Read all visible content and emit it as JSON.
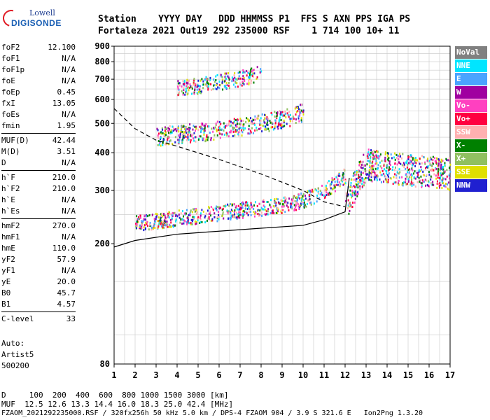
{
  "logo": {
    "top": "Lowell",
    "bottom": "DIGISONDE"
  },
  "header": {
    "labels": "Station    YYYY DAY   DDD HHMMSS P1  FFS S AXN PPS IGA PS",
    "values": "Fortaleza 2021 Out19 292 235000 RSF    1 714 100 10+ 11"
  },
  "params": {
    "group1": [
      [
        "foF2",
        "12.100"
      ],
      [
        "foF1",
        "N/A"
      ],
      [
        "foF1p",
        "N/A"
      ],
      [
        "foE",
        "N/A"
      ],
      [
        "foEp",
        "0.45"
      ],
      [
        "fxI",
        "13.05"
      ],
      [
        "foEs",
        "N/A"
      ],
      [
        "fmin",
        "1.95"
      ]
    ],
    "group2": [
      [
        "MUF(D)",
        "42.44"
      ],
      [
        "M(D)",
        "3.51"
      ],
      [
        "D",
        "N/A"
      ]
    ],
    "group3": [
      [
        "h`F",
        "210.0"
      ],
      [
        "h`F2",
        "210.0"
      ],
      [
        "h`E",
        "N/A"
      ],
      [
        "h`Es",
        "N/A"
      ]
    ],
    "group4": [
      [
        "hmF2",
        "270.0"
      ],
      [
        "hmF1",
        "N/A"
      ],
      [
        "hmE",
        "110.0"
      ],
      [
        "yF2",
        "57.9"
      ],
      [
        "yF1",
        "N/A"
      ],
      [
        "yE",
        "20.0"
      ],
      [
        "B0",
        "45.7"
      ],
      [
        "B1",
        "4.57"
      ]
    ],
    "group5": [
      [
        "C-level",
        "33"
      ]
    ]
  },
  "auto": {
    "line1": "Auto:",
    "line2": "Artist5",
    "line3": "500200"
  },
  "legend": [
    {
      "label": "NoVal",
      "color": "#808080"
    },
    {
      "label": "NNE",
      "color": "#00e5ff"
    },
    {
      "label": "E",
      "color": "#4aa3ff"
    },
    {
      "label": "W",
      "color": "#a000a0"
    },
    {
      "label": "Vo-",
      "color": "#ff40c0"
    },
    {
      "label": "Vo+",
      "color": "#ff0040"
    },
    {
      "label": "SSW",
      "color": "#ffb0b0"
    },
    {
      "label": "X-",
      "color": "#008000"
    },
    {
      "label": "X+",
      "color": "#90c060"
    },
    {
      "label": "SSE",
      "color": "#e0e000"
    },
    {
      "label": "NNW",
      "color": "#2020d0"
    }
  ],
  "footer": {
    "line1": "D     100  200  400  600  800 1000 1500 3000 [km]",
    "line2": "MUF  12.5 12.6 13.3 14.4 16.0 18.3 25.0 42.4 [MHz]",
    "line3": "FZAOM_2021292235000.RSF / 320fx256h 50 kHz 5.0 km / DPS-4 FZAOM 904 / 3.9 S 321.6 E   Ion2Png 1.3.20"
  },
  "chart_data": {
    "type": "scatter",
    "x_ticks": [
      "1",
      "2",
      "3",
      "4",
      "5",
      "6",
      "7",
      "8",
      "9",
      "10",
      "11",
      "12",
      "13",
      "14",
      "15",
      "16",
      "17"
    ],
    "y_ticks": [
      "200",
      "300",
      "400",
      "500",
      "600",
      "700",
      "800",
      "900"
    ],
    "y_bottom_label": "80",
    "xlim": [
      1,
      17
    ],
    "ylim": [
      80,
      900
    ],
    "y_scale": "log",
    "grid": true,
    "traces": [
      {
        "name": "O F2 trace",
        "x": [
          2,
          3,
          4,
          5,
          6,
          7,
          8,
          9,
          10,
          11,
          12
        ],
        "y": [
          235,
          240,
          245,
          250,
          255,
          260,
          265,
          270,
          280,
          300,
          340
        ]
      },
      {
        "name": "2nd hop",
        "x": [
          3,
          4,
          5,
          6,
          7,
          8,
          9,
          10
        ],
        "y": [
          455,
          465,
          470,
          480,
          490,
          505,
          520,
          550
        ]
      },
      {
        "name": "3rd hop",
        "x": [
          4,
          5,
          6,
          7,
          8
        ],
        "y": [
          660,
          670,
          690,
          710,
          740
        ]
      },
      {
        "name": "X trace",
        "x": [
          12,
          13,
          14,
          15,
          16,
          17
        ],
        "y": [
          270,
          370,
          360,
          355,
          350,
          345
        ]
      }
    ],
    "model_profile": {
      "x": [
        1,
        2,
        4,
        6,
        8,
        10,
        11,
        12,
        12.2
      ],
      "y": [
        195,
        205,
        215,
        220,
        225,
        230,
        240,
        255,
        330
      ]
    },
    "muf_curve": {
      "x": [
        1,
        2,
        3,
        4,
        6,
        8,
        10,
        11,
        12
      ],
      "y": [
        560,
        480,
        440,
        420,
        380,
        340,
        300,
        275,
        265
      ]
    }
  }
}
